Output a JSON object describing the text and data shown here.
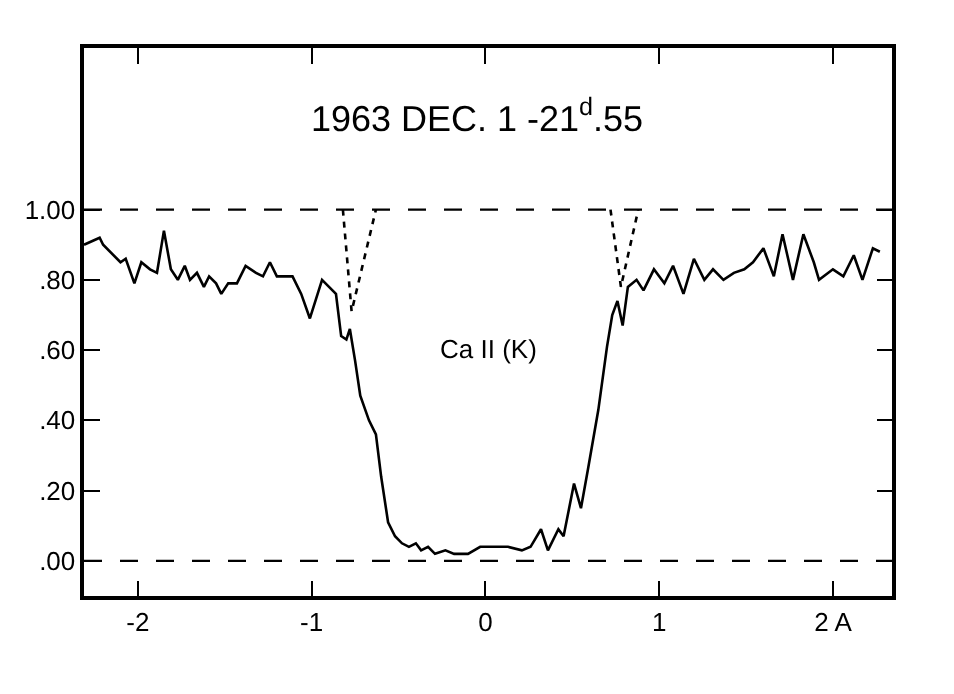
{
  "chart_data": {
    "type": "line",
    "title": "1963 DEC. 1 -21$^{d}$.55",
    "annotations": [
      "Ca II (K)"
    ],
    "series": [
      {
        "color": "#000000",
        "line_style": "solid",
        "x": [
          -2.31,
          -2.22,
          -2.2,
          -2.1,
          -2.07,
          -2.02,
          -1.98,
          -1.93,
          -1.89,
          -1.85,
          -1.81,
          -1.77,
          -1.73,
          -1.7,
          -1.66,
          -1.62,
          -1.59,
          -1.55,
          -1.52,
          -1.48,
          -1.43,
          -1.38,
          -1.32,
          -1.28,
          -1.24,
          -1.2,
          -1.15,
          -1.11,
          -1.06,
          -1.01,
          -0.94,
          -0.88,
          -0.86,
          -0.83,
          -0.8,
          -0.78,
          -0.75,
          -0.72,
          -0.67,
          -0.63,
          -0.6,
          -0.56,
          -0.52,
          -0.48,
          -0.44,
          -0.4,
          -0.37,
          -0.33,
          -0.29,
          -0.23,
          -0.18,
          -0.1,
          -0.03,
          0.02,
          0.05,
          0.13,
          0.21,
          0.26,
          0.32,
          0.36,
          0.42,
          0.45,
          0.51,
          0.55,
          0.59,
          0.65,
          0.7,
          0.73,
          0.76,
          0.79,
          0.82,
          0.87,
          0.91,
          0.97,
          1.03,
          1.08,
          1.14,
          1.2,
          1.26,
          1.31,
          1.37,
          1.43,
          1.49,
          1.54,
          1.6,
          1.66,
          1.71,
          1.77,
          1.83,
          1.89,
          1.92,
          2.0,
          2.06,
          2.12,
          2.17,
          2.23,
          2.27
        ],
        "values": [
          0.9,
          0.92,
          0.9,
          0.85,
          0.86,
          0.79,
          0.85,
          0.83,
          0.82,
          0.94,
          0.83,
          0.8,
          0.84,
          0.8,
          0.82,
          0.78,
          0.81,
          0.79,
          0.76,
          0.79,
          0.79,
          0.84,
          0.82,
          0.81,
          0.85,
          0.81,
          0.81,
          0.81,
          0.76,
          0.69,
          0.8,
          0.77,
          0.76,
          0.64,
          0.63,
          0.66,
          0.57,
          0.47,
          0.4,
          0.36,
          0.24,
          0.11,
          0.07,
          0.05,
          0.04,
          0.05,
          0.03,
          0.04,
          0.02,
          0.03,
          0.02,
          0.02,
          0.04,
          0.04,
          0.04,
          0.04,
          0.03,
          0.04,
          0.09,
          0.03,
          0.09,
          0.07,
          0.22,
          0.15,
          0.26,
          0.43,
          0.61,
          0.7,
          0.74,
          0.67,
          0.78,
          0.8,
          0.77,
          0.83,
          0.79,
          0.84,
          0.76,
          0.86,
          0.8,
          0.83,
          0.8,
          0.82,
          0.83,
          0.85,
          0.89,
          0.81,
          0.93,
          0.8,
          0.93,
          0.85,
          0.8,
          0.83,
          0.81,
          0.87,
          0.8,
          0.89,
          0.88
        ]
      },
      {
        "color": "#000000",
        "line_style": "dotted",
        "x": [
          -0.82,
          -0.77,
          -0.63
        ],
        "values": [
          1.0,
          0.71,
          1.0
        ]
      },
      {
        "color": "#000000",
        "line_style": "dotted",
        "x": [
          0.72,
          0.78,
          0.88
        ],
        "values": [
          1.0,
          0.78,
          1.0
        ]
      }
    ],
    "ref_lines": [
      {
        "axis": "y",
        "value": 1.0,
        "line_style": "dashed"
      },
      {
        "axis": "y",
        "value": 0.0,
        "line_style": "dashed"
      }
    ],
    "xlim": [
      -2.31,
      2.34
    ],
    "xticks": [
      -2,
      -1,
      0,
      1,
      {
        "value": 2,
        "label": "2 A"
      }
    ],
    "ylim": [
      -0.1,
      1.46
    ],
    "yticks": [
      {
        "value": 0,
        "label": ".00"
      },
      {
        "value": 0.2,
        "label": ".20"
      },
      {
        "value": 0.4,
        "label": ".40"
      },
      {
        "value": 0.6,
        "label": ".60"
      },
      {
        "value": 0.8,
        "label": ".80"
      },
      {
        "value": 1.0,
        "label": "1.00"
      }
    ],
    "marker": "none"
  }
}
